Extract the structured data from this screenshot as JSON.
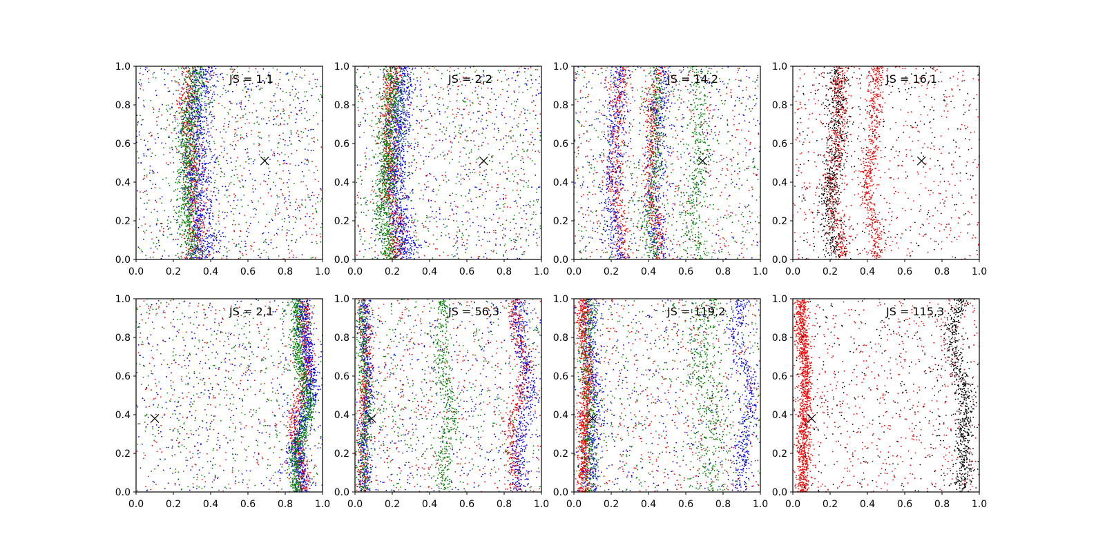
{
  "figure": {
    "layout": "2 rows x 4 columns of scatter panels",
    "point_colors": [
      "#ff0000",
      "#0000ff",
      "#008000",
      "#000000"
    ],
    "marker": "x"
  },
  "chart_data": [
    {
      "type": "scatter",
      "annotation": "JS = 1,1",
      "xlim": [
        0,
        1
      ],
      "ylim": [
        0,
        1
      ],
      "xticks": [
        "0.0",
        "0.2",
        "0.4",
        "0.6",
        "0.8",
        "1.0"
      ],
      "yticks": [
        "0.0",
        "0.2",
        "0.4",
        "0.6",
        "0.8",
        "1.0"
      ],
      "marker_point": {
        "x": 0.69,
        "y": 0.51
      },
      "series": [
        {
          "color": "#ff0000",
          "points": 900,
          "bands": [
            {
              "center": 0.3,
              "width": 0.05,
              "amp": 0.02
            }
          ]
        },
        {
          "color": "#0000ff",
          "points": 1300,
          "bands": [
            {
              "center": 0.34,
              "width": 0.07,
              "amp": 0.02
            }
          ]
        },
        {
          "color": "#008000",
          "points": 1300,
          "bands": [
            {
              "center": 0.29,
              "width": 0.05,
              "amp": 0.02
            }
          ]
        }
      ]
    },
    {
      "type": "scatter",
      "annotation": "JS = 2,2",
      "xlim": [
        0,
        1
      ],
      "ylim": [
        0,
        1
      ],
      "xticks": [
        "0.0",
        "0.2",
        "0.4",
        "0.6",
        "0.8",
        "1.0"
      ],
      "yticks": [
        "0.0",
        "0.2",
        "0.4",
        "0.6",
        "0.8",
        "1.0"
      ],
      "marker_point": {
        "x": 0.69,
        "y": 0.51
      },
      "series": [
        {
          "color": "#ff0000",
          "points": 1000,
          "bands": [
            {
              "center": 0.2,
              "width": 0.04,
              "amp": 0.02
            }
          ]
        },
        {
          "color": "#0000ff",
          "points": 1300,
          "bands": [
            {
              "center": 0.24,
              "width": 0.06,
              "amp": 0.02
            }
          ]
        },
        {
          "color": "#008000",
          "points": 1400,
          "bands": [
            {
              "center": 0.18,
              "width": 0.05,
              "amp": 0.02
            }
          ]
        }
      ]
    },
    {
      "type": "scatter",
      "annotation": "JS = 14,2",
      "xlim": [
        0,
        1
      ],
      "ylim": [
        0,
        1
      ],
      "xticks": [
        "0.0",
        "0.2",
        "0.4",
        "0.6",
        "0.8",
        "1.0"
      ],
      "yticks": [
        "0.0",
        "0.2",
        "0.4",
        "0.6",
        "0.8",
        "1.0"
      ],
      "marker_point": {
        "x": 0.69,
        "y": 0.51
      },
      "series": [
        {
          "color": "#ff0000",
          "points": 1300,
          "bands": [
            {
              "center": 0.43,
              "width": 0.03,
              "amp": 0.02
            },
            {
              "center": 0.24,
              "width": 0.04,
              "amp": 0.02
            }
          ]
        },
        {
          "color": "#0000ff",
          "points": 1200,
          "bands": [
            {
              "center": 0.22,
              "width": 0.05,
              "amp": 0.02
            },
            {
              "center": 0.45,
              "width": 0.05,
              "amp": 0.02
            }
          ]
        },
        {
          "color": "#008000",
          "points": 1100,
          "bands": [
            {
              "center": 0.66,
              "width": 0.05,
              "amp": 0.02
            },
            {
              "center": 0.43,
              "width": 0.04,
              "amp": 0.02
            }
          ]
        }
      ]
    },
    {
      "type": "scatter",
      "annotation": "JS = 16,1",
      "xlim": [
        0,
        1
      ],
      "ylim": [
        0,
        1
      ],
      "xticks": [
        "0.0",
        "0.2",
        "0.4",
        "0.6",
        "0.8",
        "1.0"
      ],
      "yticks": [
        "0.0",
        "0.2",
        "0.4",
        "0.6",
        "0.8",
        "1.0"
      ],
      "marker_point": {
        "x": 0.69,
        "y": 0.51
      },
      "series": [
        {
          "color": "#ff0000",
          "points": 1500,
          "bands": [
            {
              "center": 0.43,
              "width": 0.03,
              "amp": 0.02
            },
            {
              "center": 0.24,
              "width": 0.04,
              "amp": 0.02
            }
          ]
        },
        {
          "color": "#000000",
          "points": 900,
          "bands": [
            {
              "center": 0.22,
              "width": 0.05,
              "amp": 0.02
            }
          ]
        }
      ]
    },
    {
      "type": "scatter",
      "annotation": "JS = 2,1",
      "xlim": [
        0,
        1
      ],
      "ylim": [
        0,
        1
      ],
      "xticks": [
        "0.0",
        "0.2",
        "0.4",
        "0.6",
        "0.8",
        "1.0"
      ],
      "yticks": [
        "0.0",
        "0.2",
        "0.4",
        "0.6",
        "0.8",
        "1.0"
      ],
      "marker_point": {
        "x": 0.1,
        "y": 0.38
      },
      "series": [
        {
          "color": "#ff0000",
          "points": 900,
          "bands": [
            {
              "center": 0.89,
              "width": 0.03,
              "amp": 0.03
            }
          ]
        },
        {
          "color": "#0000ff",
          "points": 1200,
          "bands": [
            {
              "center": 0.9,
              "width": 0.04,
              "amp": 0.03
            }
          ]
        },
        {
          "color": "#008000",
          "points": 1300,
          "bands": [
            {
              "center": 0.88,
              "width": 0.03,
              "amp": 0.03
            }
          ]
        }
      ]
    },
    {
      "type": "scatter",
      "annotation": "JS = 56,3",
      "xlim": [
        0,
        1
      ],
      "ylim": [
        0,
        1
      ],
      "xticks": [
        "0.0",
        "0.2",
        "0.4",
        "0.6",
        "0.8",
        "1.0"
      ],
      "yticks": [
        "0.0",
        "0.2",
        "0.4",
        "0.6",
        "0.8",
        "1.0"
      ],
      "marker_point": {
        "x": 0.09,
        "y": 0.38
      },
      "series": [
        {
          "color": "#ff0000",
          "points": 1300,
          "bands": [
            {
              "center": 0.05,
              "width": 0.03,
              "amp": 0.01
            },
            {
              "center": 0.87,
              "width": 0.03,
              "amp": 0.03
            }
          ]
        },
        {
          "color": "#0000ff",
          "points": 1300,
          "bands": [
            {
              "center": 0.9,
              "width": 0.04,
              "amp": 0.03
            },
            {
              "center": 0.06,
              "width": 0.03,
              "amp": 0.01
            }
          ]
        },
        {
          "color": "#008000",
          "points": 1200,
          "bands": [
            {
              "center": 0.05,
              "width": 0.03,
              "amp": 0.01
            },
            {
              "center": 0.48,
              "width": 0.04,
              "amp": 0.02
            }
          ]
        }
      ]
    },
    {
      "type": "scatter",
      "annotation": "JS = 119,2",
      "xlim": [
        0,
        1
      ],
      "ylim": [
        0,
        1
      ],
      "xticks": [
        "0.0",
        "0.2",
        "0.4",
        "0.6",
        "0.8",
        "1.0"
      ],
      "yticks": [
        "0.0",
        "0.2",
        "0.4",
        "0.6",
        "0.8",
        "1.0"
      ],
      "marker_point": {
        "x": 0.1,
        "y": 0.38
      },
      "series": [
        {
          "color": "#ff0000",
          "points": 1500,
          "bands": [
            {
              "center": 0.06,
              "width": 0.03,
              "amp": 0.01
            }
          ]
        },
        {
          "color": "#0000ff",
          "points": 1200,
          "bands": [
            {
              "center": 0.91,
              "width": 0.04,
              "amp": 0.03
            },
            {
              "center": 0.1,
              "width": 0.04,
              "amp": 0.01
            }
          ]
        },
        {
          "color": "#008000",
          "points": 1200,
          "bands": [
            {
              "center": 0.08,
              "width": 0.04,
              "amp": 0.01
            },
            {
              "center": 0.72,
              "width": 0.08,
              "amp": 0.02
            }
          ]
        }
      ]
    },
    {
      "type": "scatter",
      "annotation": "JS = 115,3",
      "xlim": [
        0,
        1
      ],
      "ylim": [
        0,
        1
      ],
      "xticks": [
        "0.0",
        "0.2",
        "0.4",
        "0.6",
        "0.8",
        "1.0"
      ],
      "yticks": [
        "0.0",
        "0.2",
        "0.4",
        "0.6",
        "0.8",
        "1.0"
      ],
      "marker_point": {
        "x": 0.1,
        "y": 0.38
      },
      "series": [
        {
          "color": "#ff0000",
          "points": 1700,
          "bands": [
            {
              "center": 0.06,
              "width": 0.03,
              "amp": 0.01
            }
          ]
        },
        {
          "color": "#000000",
          "points": 1000,
          "bands": [
            {
              "center": 0.9,
              "width": 0.04,
              "amp": 0.03
            }
          ]
        }
      ]
    }
  ]
}
